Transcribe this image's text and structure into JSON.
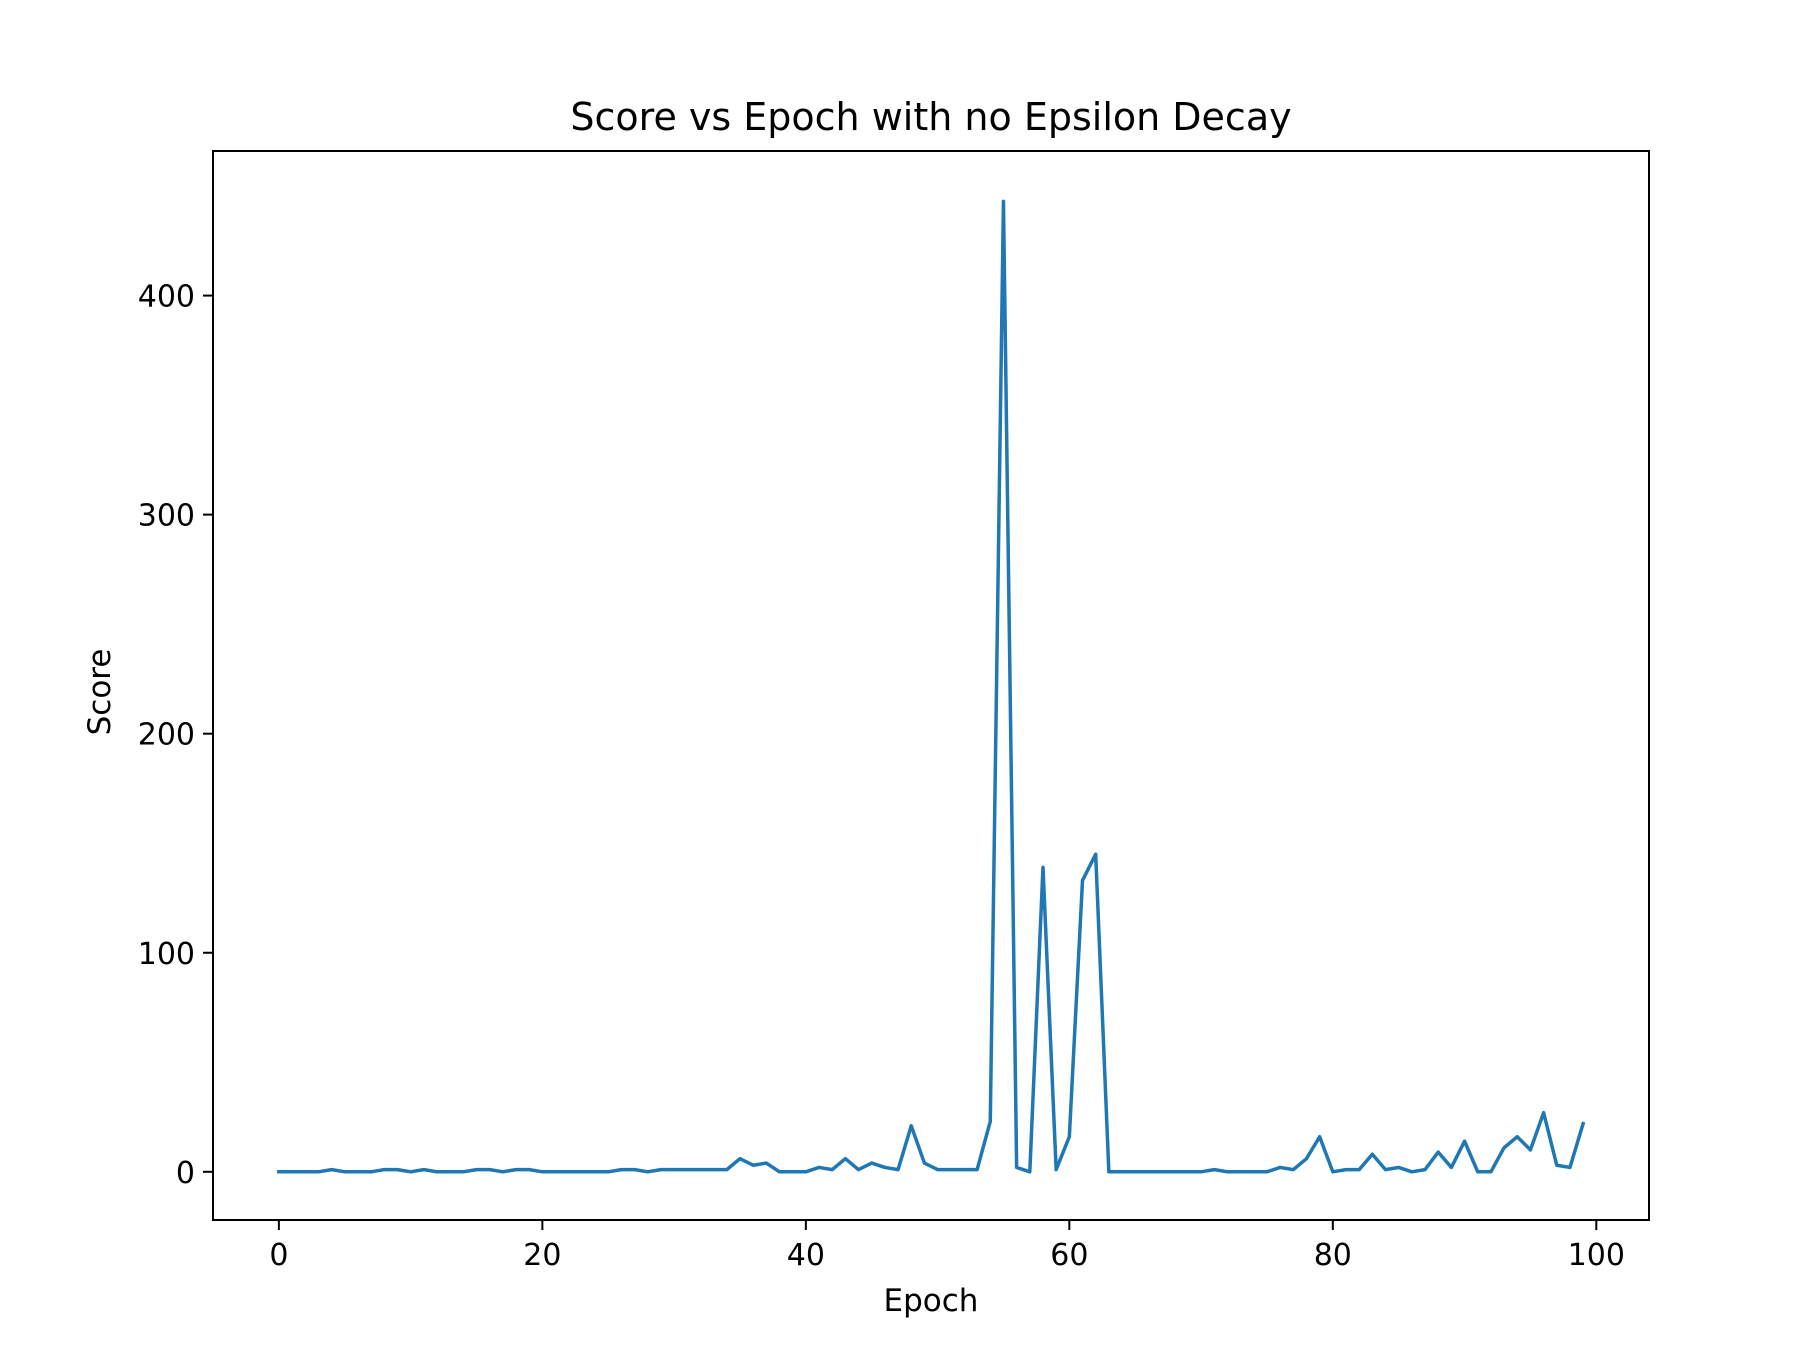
{
  "chart_data": {
    "type": "line",
    "title": "Score vs Epoch with no Epsilon Decay",
    "xlabel": "Epoch",
    "ylabel": "Score",
    "xlim": [
      -5,
      104
    ],
    "ylim": [
      -22,
      466
    ],
    "x_ticks": [
      0,
      20,
      40,
      60,
      80,
      100
    ],
    "y_ticks": [
      0,
      100,
      200,
      300,
      400
    ],
    "grid": false,
    "legend": "none",
    "colors": {
      "line": "#1f77b4",
      "axes": "#000000",
      "background": "#ffffff"
    },
    "x": [
      0,
      1,
      2,
      3,
      4,
      5,
      6,
      7,
      8,
      9,
      10,
      11,
      12,
      13,
      14,
      15,
      16,
      17,
      18,
      19,
      20,
      21,
      22,
      23,
      24,
      25,
      26,
      27,
      28,
      29,
      30,
      31,
      32,
      33,
      34,
      35,
      36,
      37,
      38,
      39,
      40,
      41,
      42,
      43,
      44,
      45,
      46,
      47,
      48,
      49,
      50,
      51,
      52,
      53,
      54,
      55,
      56,
      57,
      58,
      59,
      60,
      61,
      62,
      63,
      64,
      65,
      66,
      67,
      68,
      69,
      70,
      71,
      72,
      73,
      74,
      75,
      76,
      77,
      78,
      79,
      80,
      81,
      82,
      83,
      84,
      85,
      86,
      87,
      88,
      89,
      90,
      91,
      92,
      93,
      94,
      95,
      96,
      97,
      98,
      99
    ],
    "series": [
      {
        "values": [
          0,
          0,
          0,
          0,
          1,
          0,
          0,
          0,
          1,
          1,
          0,
          1,
          0,
          0,
          0,
          1,
          1,
          0,
          1,
          1,
          0,
          0,
          0,
          0,
          0,
          0,
          1,
          1,
          0,
          1,
          1,
          1,
          1,
          1,
          1,
          6,
          3,
          4,
          0,
          0,
          0,
          2,
          1,
          6,
          1,
          4,
          2,
          1,
          21,
          4,
          1,
          1,
          1,
          1,
          23,
          443,
          2,
          0,
          139,
          1,
          16,
          133,
          145,
          0,
          0,
          0,
          0,
          0,
          0,
          0,
          0,
          1,
          0,
          0,
          0,
          0,
          2,
          1,
          6,
          16,
          0,
          1,
          1,
          8,
          1,
          2,
          0,
          1,
          9,
          2,
          14,
          0,
          0,
          11,
          16,
          10,
          27,
          3,
          2,
          22
        ]
      }
    ]
  }
}
